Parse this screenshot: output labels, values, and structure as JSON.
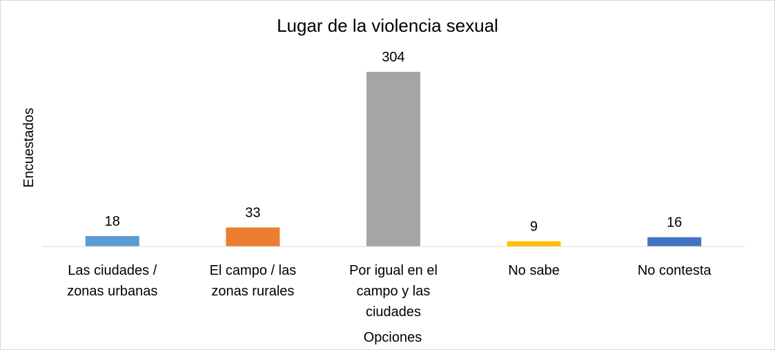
{
  "chart_data": {
    "type": "bar",
    "title": "Lugar de la violencia sexual",
    "xlabel": "Opciones",
    "ylabel": "Encuestados",
    "categories": [
      [
        "Las ciudades /",
        "zonas urbanas"
      ],
      [
        "El campo / las",
        "zonas rurales"
      ],
      [
        "Por igual en el",
        "campo y las",
        "ciudades"
      ],
      [
        "No sabe"
      ],
      [
        "No contesta"
      ]
    ],
    "values": [
      18,
      33,
      304,
      9,
      16
    ],
    "bar_colors": [
      "#5b9bd5",
      "#ed7d31",
      "#a5a5a5",
      "#ffc000",
      "#4472c4"
    ],
    "ylim": [
      0,
      304
    ],
    "grid": false,
    "legend": "none",
    "axis_line_color": "#d9d9d9"
  }
}
